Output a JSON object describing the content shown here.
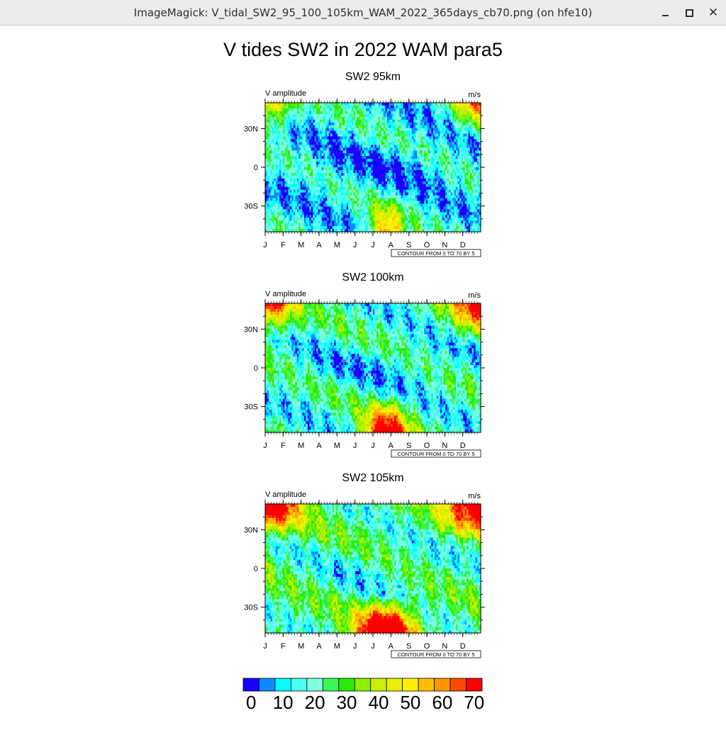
{
  "window": {
    "title": "ImageMagick: V_tidal_SW2_95_100_105km_WAM_2022_365days_cb70.png (on hfe10)",
    "close_glyph": "✕"
  },
  "figure_title": "V tides SW2 in 2022 WAM para5",
  "chart_data": [
    {
      "type": "heatmap",
      "title": "SW2  95km",
      "left_label": "V amplitude",
      "right_label": "m/s",
      "x_tick_labels": [
        "J",
        "F",
        "M",
        "A",
        "M",
        "J",
        "J",
        "A",
        "S",
        "O",
        "N",
        "D"
      ],
      "y_tick_labels": [
        "30N",
        "0",
        "30S"
      ],
      "y_ticks": [
        30,
        0,
        -30
      ],
      "ylim": [
        -50,
        50
      ],
      "xlim": [
        1,
        365
      ],
      "contour_info": "CONTOUR FROM 0 TO 70 BY 5"
    },
    {
      "type": "heatmap",
      "title": "SW2  100km",
      "left_label": "V amplitude",
      "right_label": "m/s",
      "x_tick_labels": [
        "J",
        "F",
        "M",
        "A",
        "M",
        "J",
        "J",
        "A",
        "S",
        "O",
        "N",
        "D"
      ],
      "y_tick_labels": [
        "30N",
        "0",
        "30S"
      ],
      "y_ticks": [
        30,
        0,
        -30
      ],
      "ylim": [
        -50,
        50
      ],
      "xlim": [
        1,
        365
      ],
      "contour_info": "CONTOUR FROM 0 TO 70 BY 5"
    },
    {
      "type": "heatmap",
      "title": "SW2  105km",
      "left_label": "V amplitude",
      "right_label": "m/s",
      "x_tick_labels": [
        "J",
        "F",
        "M",
        "A",
        "M",
        "J",
        "J",
        "A",
        "S",
        "O",
        "N",
        "D"
      ],
      "y_tick_labels": [
        "30N",
        "0",
        "30S"
      ],
      "y_ticks": [
        30,
        0,
        -30
      ],
      "ylim": [
        -50,
        50
      ],
      "xlim": [
        1,
        365
      ],
      "contour_info": "CONTOUR FROM 0 TO 70 BY 5"
    }
  ],
  "colorbar": {
    "levels": [
      0,
      5,
      10,
      15,
      20,
      25,
      30,
      35,
      40,
      45,
      50,
      55,
      60,
      65,
      70
    ],
    "colors": [
      "#1a00ff",
      "#0d8cff",
      "#00ffff",
      "#4dfff0",
      "#80ffdd",
      "#3cf55a",
      "#28ec00",
      "#8cf000",
      "#c8f000",
      "#e6f000",
      "#fff000",
      "#ffbe00",
      "#ff9600",
      "#ff4b00",
      "#ff0000"
    ],
    "tick_labels": [
      "0",
      "10",
      "20",
      "30",
      "40",
      "50",
      "60",
      "70"
    ]
  }
}
